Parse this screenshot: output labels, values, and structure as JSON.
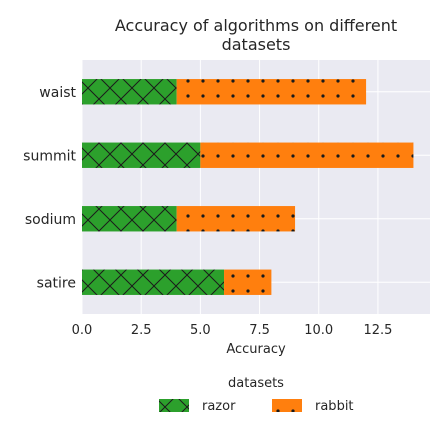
{
  "chart_data": {
    "type": "bar",
    "orientation": "horizontal",
    "stacked": true,
    "title": "Accuracy of algorithms on different datasets",
    "title_lines": [
      "Accuracy of algorithms on different",
      "datasets"
    ],
    "xlabel": "Accuracy",
    "ylabel": "",
    "categories": [
      "waist",
      "summit",
      "sodium",
      "satire"
    ],
    "series": [
      {
        "name": "razor",
        "values": [
          4,
          5,
          4,
          6
        ],
        "color": "#2ca02c",
        "hatch": "cross"
      },
      {
        "name": "rabbit",
        "values": [
          8,
          9,
          5,
          2
        ],
        "color": "#ff7f0e",
        "hatch": "dots"
      }
    ],
    "xlim": [
      0,
      14.7
    ],
    "xticks": [
      0,
      2.5,
      5,
      7.5,
      10,
      12.5
    ],
    "xtick_labels": [
      "0.0",
      "2.5",
      "5.0",
      "7.5",
      "10.0",
      "12.5"
    ],
    "grid": true,
    "background": "#eaeaf2",
    "legend": {
      "title": "datasets",
      "placement": "bottom-center"
    }
  }
}
